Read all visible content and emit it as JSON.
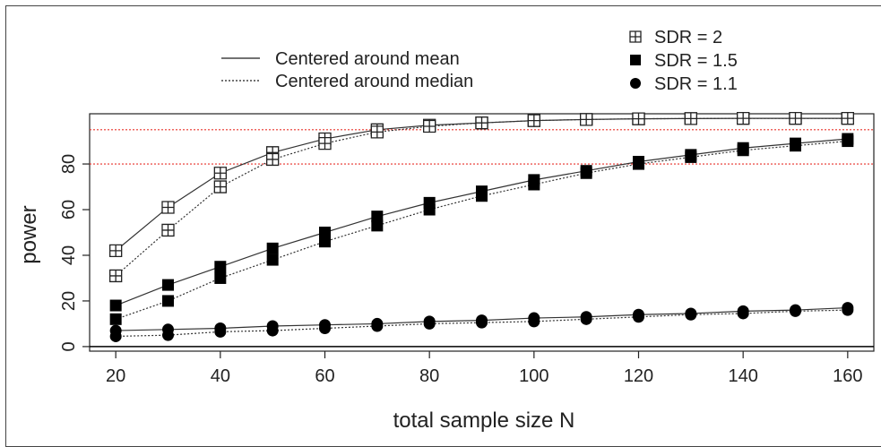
{
  "chart_data": {
    "type": "line",
    "xlabel": "total sample size N",
    "ylabel": "power",
    "x": [
      20,
      30,
      40,
      50,
      60,
      70,
      80,
      90,
      100,
      110,
      120,
      130,
      140,
      150,
      160
    ],
    "xlim": [
      15,
      165
    ],
    "ylim": [
      -2,
      102
    ],
    "xticks": [
      20,
      40,
      60,
      80,
      100,
      120,
      140,
      160
    ],
    "yticks": [
      0,
      20,
      40,
      60,
      80
    ],
    "grid": false,
    "reference_lines": [
      {
        "y": 95,
        "color": "#e8322a",
        "style": "dotted"
      },
      {
        "y": 80,
        "color": "#e8322a",
        "style": "dotted"
      },
      {
        "y": 0,
        "color": "#000000",
        "style": "solid"
      }
    ],
    "legend_lines": [
      {
        "label": "Centered around mean",
        "style": "solid"
      },
      {
        "label": "Centered around median",
        "style": "dotted"
      }
    ],
    "legend_markers": [
      {
        "label": "SDR = 2",
        "marker": "boxplus"
      },
      {
        "label": "SDR = 1.5",
        "marker": "square"
      },
      {
        "label": "SDR = 1.1",
        "marker": "circle"
      }
    ],
    "series": [
      {
        "marker": "boxplus",
        "line": "solid",
        "values": [
          42,
          61,
          76,
          85,
          91,
          95,
          97,
          98,
          99,
          99.5,
          99.8,
          99.9,
          100,
          100,
          100
        ]
      },
      {
        "marker": "boxplus",
        "line": "dotted",
        "values": [
          31,
          51,
          70,
          82,
          89,
          94,
          96.5,
          98,
          99,
          99.5,
          99.8,
          99.9,
          100,
          100,
          100
        ]
      },
      {
        "marker": "square",
        "line": "solid",
        "values": [
          18,
          27,
          35,
          43,
          50,
          57,
          63,
          68,
          73,
          77,
          81,
          84,
          87,
          89,
          91
        ]
      },
      {
        "marker": "square",
        "line": "dotted",
        "values": [
          12,
          20,
          30,
          38,
          46,
          53,
          60,
          66,
          71,
          76,
          80,
          83,
          86,
          88,
          90
        ]
      },
      {
        "marker": "circle",
        "line": "solid",
        "values": [
          7,
          7.5,
          8,
          9,
          9.5,
          10,
          11,
          11.5,
          12.5,
          13,
          14,
          14.5,
          15.5,
          16,
          17
        ]
      },
      {
        "marker": "circle",
        "line": "dotted",
        "values": [
          4.5,
          5,
          6.5,
          7,
          8,
          9,
          10,
          10.5,
          11,
          12,
          13,
          14,
          14.5,
          15.5,
          16
        ]
      }
    ]
  }
}
